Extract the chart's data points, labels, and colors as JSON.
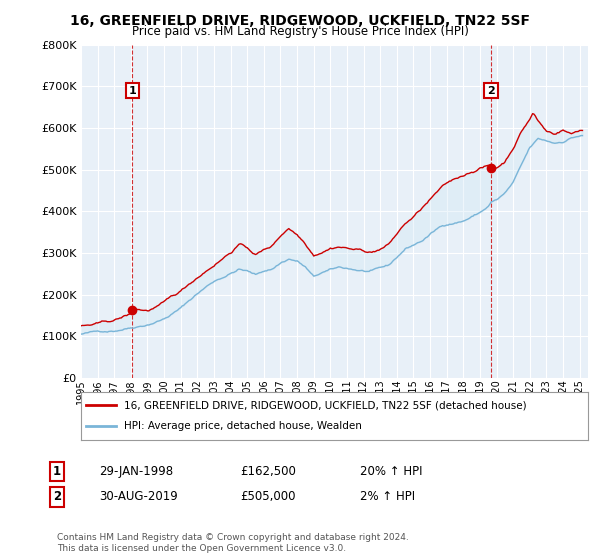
{
  "title": "16, GREENFIELD DRIVE, RIDGEWOOD, UCKFIELD, TN22 5SF",
  "subtitle": "Price paid vs. HM Land Registry's House Price Index (HPI)",
  "legend_line1": "16, GREENFIELD DRIVE, RIDGEWOOD, UCKFIELD, TN22 5SF (detached house)",
  "legend_line2": "HPI: Average price, detached house, Wealden",
  "annotation1_label": "1",
  "annotation1_date": "29-JAN-1998",
  "annotation1_price": "£162,500",
  "annotation1_hpi": "20% ↑ HPI",
  "annotation2_label": "2",
  "annotation2_date": "30-AUG-2019",
  "annotation2_price": "£505,000",
  "annotation2_hpi": "2% ↑ HPI",
  "copyright": "Contains HM Land Registry data © Crown copyright and database right 2024.\nThis data is licensed under the Open Government Licence v3.0.",
  "sale1_year": 1998.08,
  "sale1_price": 162500,
  "sale2_year": 2019.66,
  "sale2_price": 505000,
  "hpi_color": "#7ab5d8",
  "price_color": "#cc0000",
  "fill_color": "#d0e8f5",
  "sale_dot_color": "#cc0000",
  "bg_color": "#e8f0f8",
  "ylim": [
    0,
    800000
  ],
  "yticks": [
    0,
    100000,
    200000,
    300000,
    400000,
    500000,
    600000,
    700000,
    800000
  ],
  "xlim_start": 1995.0,
  "xlim_end": 2025.5
}
